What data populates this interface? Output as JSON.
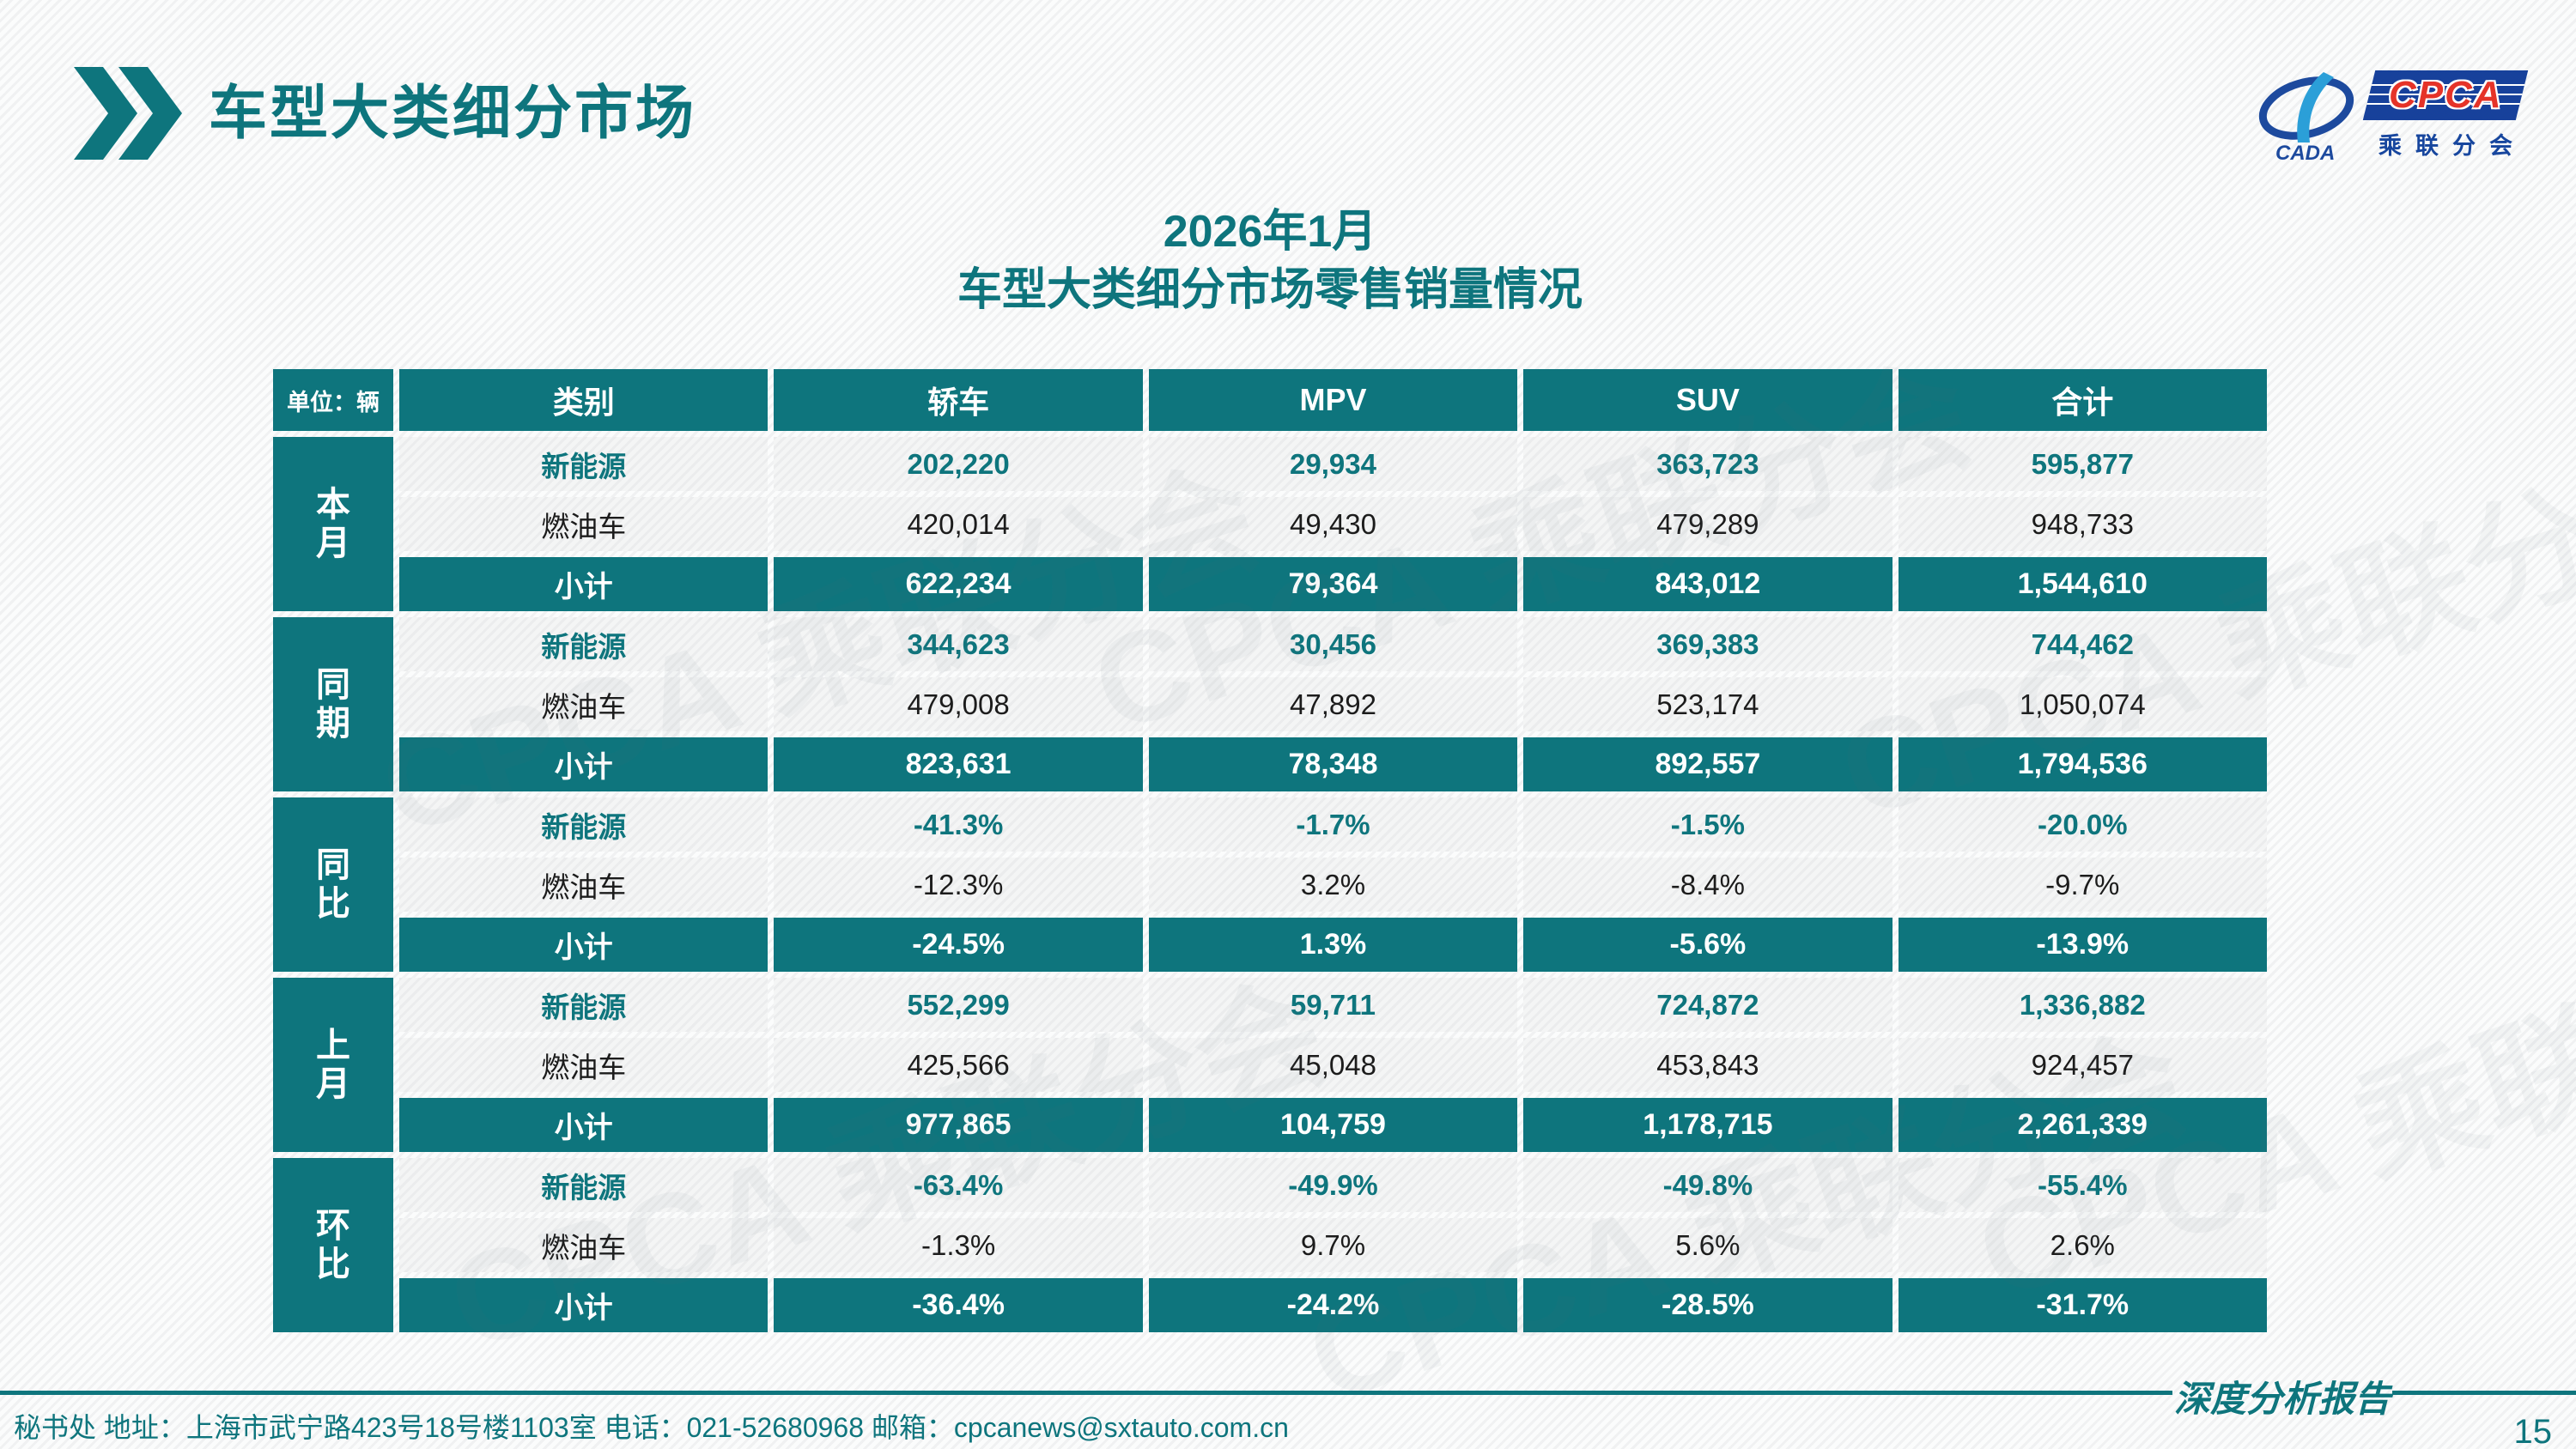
{
  "page": {
    "title": "车型大类细分市场",
    "page_number": "15",
    "watermark_label": "CPCA 乘联分会"
  },
  "logo": {
    "cada": "CADA",
    "cpca": "CPCA",
    "sub": "乘联分会"
  },
  "subtitle": {
    "line1": "2026年1月",
    "line2": "车型大类细分市场零售销量情况"
  },
  "footer": {
    "contact": "秘书处   地址：上海市武宁路423号18号楼1103室  电话：021-52680968   邮箱：cpcanews@sxtauto.com.cn",
    "report_label": "深度分析报告"
  },
  "colors": {
    "teal": "#0e757d",
    "logo_blue": "#17419b",
    "logo_red": "#e53328"
  },
  "chart_data": {
    "type": "table",
    "title": "2026年1月 车型大类细分市场零售销量情况",
    "unit_label": "单位：辆",
    "columns": [
      "类别",
      "轿车",
      "MPV",
      "SUV",
      "合计"
    ],
    "groups": [
      {
        "label": "本月",
        "rows": [
          {
            "category": "新能源",
            "style": "nev",
            "values": [
              "202,220",
              "29,934",
              "363,723",
              "595,877"
            ]
          },
          {
            "category": "燃油车",
            "style": "ice",
            "values": [
              "420,014",
              "49,430",
              "479,289",
              "948,733"
            ]
          },
          {
            "category": "小计",
            "style": "sub",
            "values": [
              "622,234",
              "79,364",
              "843,012",
              "1,544,610"
            ]
          }
        ]
      },
      {
        "label": "同期",
        "rows": [
          {
            "category": "新能源",
            "style": "nev",
            "values": [
              "344,623",
              "30,456",
              "369,383",
              "744,462"
            ]
          },
          {
            "category": "燃油车",
            "style": "ice",
            "values": [
              "479,008",
              "47,892",
              "523,174",
              "1,050,074"
            ]
          },
          {
            "category": "小计",
            "style": "sub",
            "values": [
              "823,631",
              "78,348",
              "892,557",
              "1,794,536"
            ]
          }
        ]
      },
      {
        "label": "同比",
        "rows": [
          {
            "category": "新能源",
            "style": "nev",
            "values": [
              "-41.3%",
              "-1.7%",
              "-1.5%",
              "-20.0%"
            ]
          },
          {
            "category": "燃油车",
            "style": "ice",
            "values": [
              "-12.3%",
              "3.2%",
              "-8.4%",
              "-9.7%"
            ]
          },
          {
            "category": "小计",
            "style": "sub",
            "values": [
              "-24.5%",
              "1.3%",
              "-5.6%",
              "-13.9%"
            ]
          }
        ]
      },
      {
        "label": "上月",
        "rows": [
          {
            "category": "新能源",
            "style": "nev",
            "values": [
              "552,299",
              "59,711",
              "724,872",
              "1,336,882"
            ]
          },
          {
            "category": "燃油车",
            "style": "ice",
            "values": [
              "425,566",
              "45,048",
              "453,843",
              "924,457"
            ]
          },
          {
            "category": "小计",
            "style": "sub",
            "values": [
              "977,865",
              "104,759",
              "1,178,715",
              "2,261,339"
            ]
          }
        ]
      },
      {
        "label": "环比",
        "rows": [
          {
            "category": "新能源",
            "style": "nev",
            "values": [
              "-63.4%",
              "-49.9%",
              "-49.8%",
              "-55.4%"
            ]
          },
          {
            "category": "燃油车",
            "style": "ice",
            "values": [
              "-1.3%",
              "9.7%",
              "5.6%",
              "2.6%"
            ]
          },
          {
            "category": "小计",
            "style": "sub",
            "values": [
              "-36.4%",
              "-24.2%",
              "-28.5%",
              "-31.7%"
            ]
          }
        ]
      }
    ]
  }
}
